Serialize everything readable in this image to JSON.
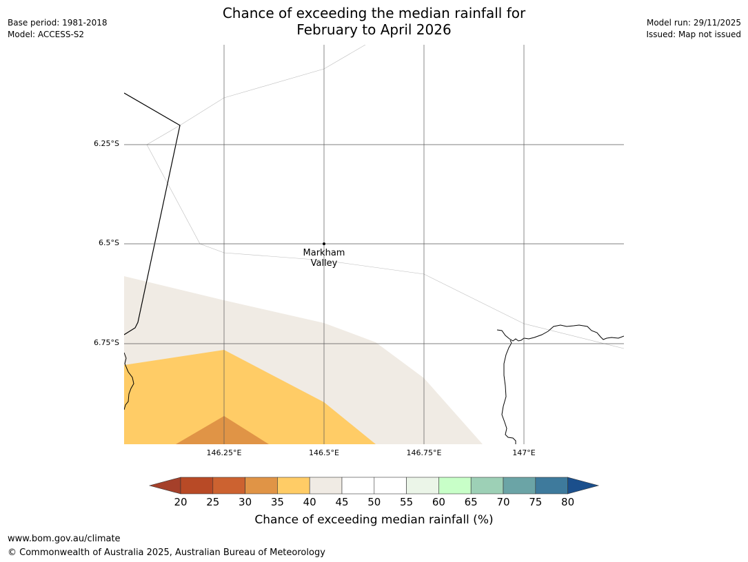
{
  "header": {
    "title_line1": "Chance of exceeding the median rainfall for",
    "title_line2": "February to April 2026",
    "base_period": "Base period: 1981-2018",
    "model": "Model: ACCESS-S2",
    "model_run": "Model run: 29/11/2025",
    "issued": "Issued: Map not issued"
  },
  "map": {
    "latitude_labels": [
      "6.25°S",
      "6.5°S",
      "6.75°S"
    ],
    "longitude_labels": [
      "146.25°E",
      "146.5°E",
      "146.75°E",
      "147°E"
    ],
    "place": {
      "name_line1": "Markham",
      "name_line2": "Valley",
      "lon": 146.5,
      "lat": -6.5
    },
    "visible_categories_percent": [
      "30-35",
      "35-40",
      "40-45",
      "45-50"
    ]
  },
  "colorbar": {
    "ticks": [
      "20",
      "25",
      "30",
      "35",
      "40",
      "45",
      "50",
      "55",
      "60",
      "65",
      "70",
      "75",
      "80"
    ],
    "colors": [
      "#a5402a",
      "#b84a26",
      "#cc6230",
      "#e09446",
      "#ffcc66",
      "#f0ebe4",
      "#ffffff",
      "#ffffff",
      "#ebf5e8",
      "#c8ffc8",
      "#9dd0b6",
      "#6ba4a6",
      "#3e7a9c",
      "#1b4f8c"
    ],
    "label": "Chance of exceeding median rainfall (%)"
  },
  "footer": {
    "url": "www.bom.gov.au/climate",
    "copyright": "© Commonwealth of Australia 2025, Australian Bureau of Meteorology"
  }
}
